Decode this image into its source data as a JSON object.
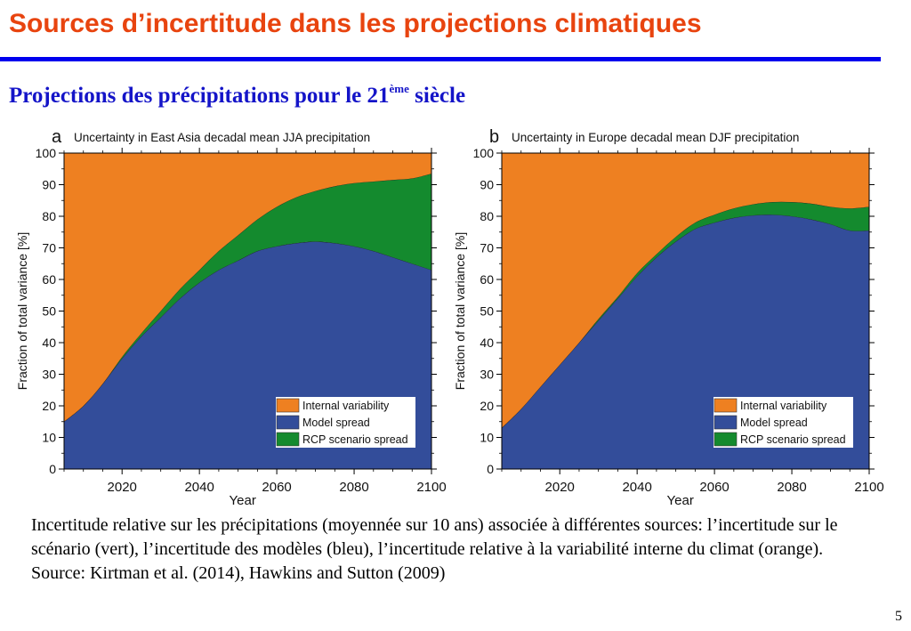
{
  "page": {
    "title": "Sources d’incertitude dans les projections climatiques",
    "subtitle_main": "Projections des précipitations pour le 21",
    "subtitle_sup": "ème",
    "subtitle_end": " siècle",
    "caption": "Incertitude relative sur les précipitations (moyennée sur 10 ans) associée à différentes sources: l’incertitude sur le scénario (vert), l’incertitude des modèles (bleu), l’incertitude relative à la variabilité interne du climat (orange). Source: Kirtman et al. (2014), Hawkins and Sutton (2009)",
    "page_number": "5"
  },
  "colors": {
    "title": "#e8440f",
    "subtitle": "#1414c8",
    "rule": "#0000ee",
    "internal": "#ee8021",
    "model": "#334d9a",
    "rcp": "#148a2e"
  },
  "chart_data": [
    {
      "panel_letter": "a",
      "type": "area",
      "title": "Uncertainty in East Asia decadal mean JJA precipitation",
      "xlabel": "Year",
      "ylabel": "Fraction of total variance  [%]",
      "xlim": [
        2005,
        2100
      ],
      "ylim": [
        0,
        100
      ],
      "xticks": [
        2020,
        2040,
        2060,
        2080,
        2100
      ],
      "yticks": [
        0,
        10,
        20,
        30,
        40,
        50,
        60,
        70,
        80,
        90,
        100
      ],
      "stacking": "cumulative from bottom: Model spread, RCP scenario spread, Internal variability",
      "x": [
        2005,
        2010,
        2015,
        2020,
        2025,
        2030,
        2035,
        2040,
        2045,
        2050,
        2055,
        2060,
        2065,
        2070,
        2075,
        2080,
        2085,
        2090,
        2095,
        2100
      ],
      "series": [
        {
          "name": "Model spread",
          "values": [
            15,
            20,
            27,
            35,
            42,
            48,
            54,
            59,
            63,
            66,
            69,
            70.5,
            71.5,
            72,
            71.5,
            70.5,
            69,
            67,
            65,
            63
          ]
        },
        {
          "name": "RCP scenario spread",
          "values": [
            0,
            0,
            0,
            0.5,
            1,
            2,
            3,
            4,
            6,
            8,
            10,
            12.5,
            14.5,
            16,
            18,
            20,
            22,
            24.5,
            27,
            30.5
          ]
        },
        {
          "name": "Internal variability",
          "values": [
            85,
            80,
            73,
            64.5,
            57,
            50,
            43,
            37,
            31,
            26,
            21,
            17,
            14,
            12,
            10.5,
            9.5,
            9,
            8.5,
            8,
            6.5
          ]
        }
      ],
      "legend": {
        "position": "lower-right",
        "entries": [
          "Internal variability",
          "Model spread",
          "RCP scenario spread"
        ]
      }
    },
    {
      "panel_letter": "b",
      "type": "area",
      "title": "Uncertainty in Europe decadal mean DJF precipitation",
      "xlabel": "Year",
      "ylabel": "Fraction of total variance  [%]",
      "xlim": [
        2005,
        2100
      ],
      "ylim": [
        0,
        100
      ],
      "xticks": [
        2020,
        2040,
        2060,
        2080,
        2100
      ],
      "yticks": [
        0,
        10,
        20,
        30,
        40,
        50,
        60,
        70,
        80,
        90,
        100
      ],
      "stacking": "cumulative from bottom: Model spread, RCP scenario spread, Internal variability",
      "x": [
        2005,
        2010,
        2015,
        2020,
        2025,
        2030,
        2035,
        2040,
        2045,
        2050,
        2055,
        2060,
        2065,
        2070,
        2075,
        2080,
        2085,
        2090,
        2095,
        2100
      ],
      "series": [
        {
          "name": "Model spread",
          "values": [
            13,
            19,
            26,
            33,
            40,
            47,
            54,
            61,
            67,
            72,
            76,
            78,
            79.5,
            80.3,
            80.5,
            80,
            79,
            77.5,
            75.5,
            75.5
          ]
        },
        {
          "name": "RCP scenario spread",
          "values": [
            0,
            0,
            0,
            0,
            0,
            0.5,
            0.5,
            1,
            1,
            1.5,
            2,
            2.5,
            3,
            3.5,
            4,
            4.5,
            5,
            5.5,
            7,
            7.5
          ]
        },
        {
          "name": "Internal variability",
          "values": [
            87,
            81,
            74,
            67,
            60,
            52.5,
            45.5,
            38,
            32,
            26.5,
            22,
            19.5,
            17.5,
            16.2,
            15.5,
            15.5,
            16,
            17,
            17.5,
            17
          ]
        }
      ],
      "legend": {
        "position": "lower-right",
        "entries": [
          "Internal variability",
          "Model spread",
          "RCP scenario spread"
        ]
      }
    }
  ]
}
